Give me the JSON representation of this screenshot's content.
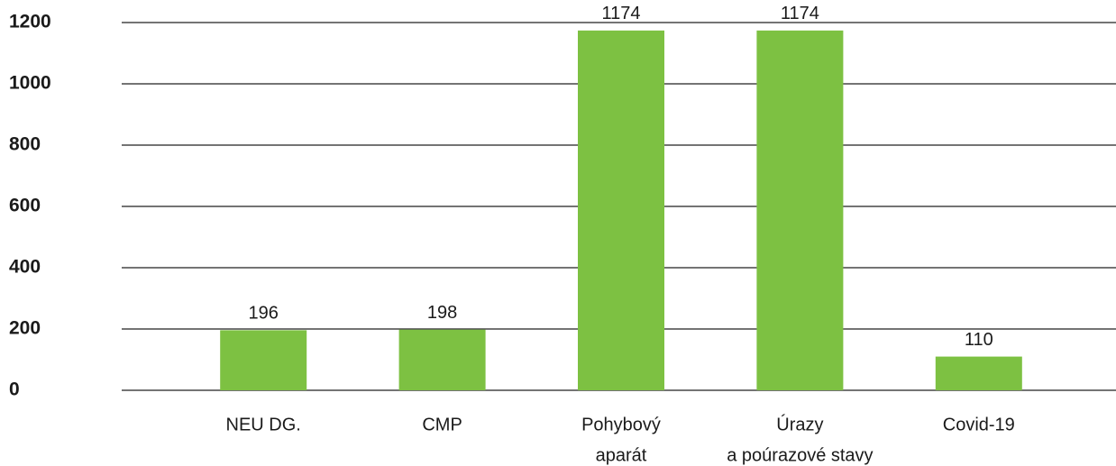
{
  "chart_data": {
    "type": "bar",
    "categories": [
      [
        "NEU DG."
      ],
      [
        "CMP"
      ],
      [
        "Pohybový",
        "aparát"
      ],
      [
        "Úrazy",
        "a poúrazové stavy"
      ],
      [
        "Covid-19"
      ]
    ],
    "values": [
      196,
      198,
      1174,
      1174,
      110
    ],
    "color": "#7dc142",
    "ylim": [
      0,
      1200
    ],
    "yticks": [
      0,
      200,
      400,
      600,
      800,
      1000,
      1200
    ],
    "grid": true
  }
}
